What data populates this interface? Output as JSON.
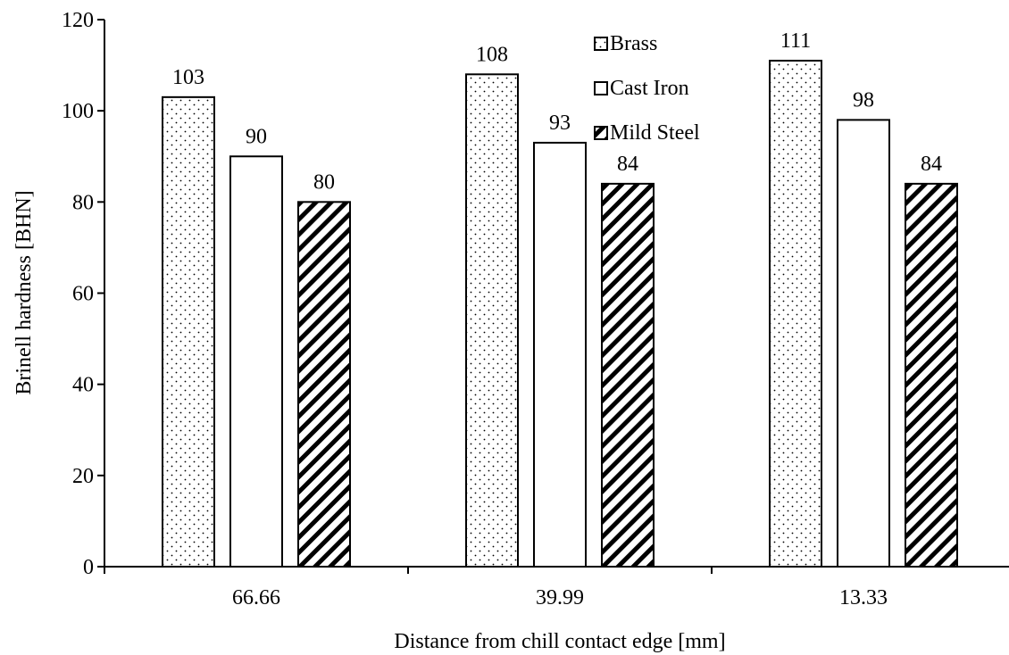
{
  "chart_data": {
    "type": "bar",
    "title": "",
    "xlabel": "Distance from chill contact edge [mm]",
    "ylabel": "Brinell hardness [BHN]",
    "categories": [
      "66.66",
      "39.99",
      "13.33"
    ],
    "ylim": [
      0,
      120
    ],
    "yticks": [
      0,
      20,
      40,
      60,
      80,
      100,
      120
    ],
    "grid": false,
    "legend_position": "top-center",
    "series": [
      {
        "name": "Brass",
        "pattern": "dots",
        "values": [
          103,
          108,
          111
        ],
        "labels": [
          "103",
          "108",
          "111"
        ]
      },
      {
        "name": "Cast Iron",
        "pattern": "solid-white",
        "values": [
          90,
          93,
          98
        ],
        "labels": [
          "90",
          "93",
          "98"
        ]
      },
      {
        "name": "Mild Steel",
        "pattern": "diagonal-hatch",
        "values": [
          80,
          84,
          84
        ],
        "labels": [
          "80",
          "84",
          "84"
        ]
      }
    ],
    "colors": {
      "bar_fill": "#ffffff",
      "stroke": "#000000"
    }
  }
}
